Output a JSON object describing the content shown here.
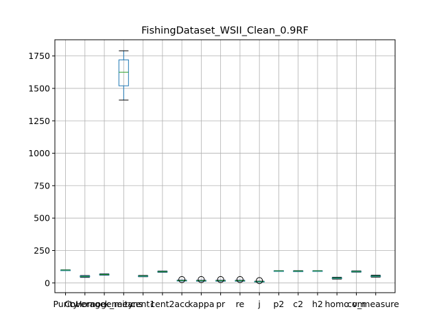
{
  "chart_data": {
    "type": "box",
    "title": "FishingDataset_WSII_Clean_0.9RF",
    "xlabel": "",
    "ylabel": "",
    "ylim": [
      -75,
      1875
    ],
    "yticks": [
      0,
      250,
      500,
      750,
      1000,
      1250,
      1500,
      1750
    ],
    "grid": true,
    "colors": {
      "box": "#1f77b4",
      "median": "#2ca02c",
      "whisker": "#000000",
      "flier": "#000000"
    },
    "categories": [
      "Purity",
      "Coverage",
      "Homogeneity",
      "k_means",
      "cent1",
      "cent2",
      "acc",
      "kappa",
      "pr",
      "re",
      "j",
      "p2",
      "c2",
      "h2",
      "homo",
      "com",
      "v_measure"
    ],
    "boxes": [
      {
        "name": "Purity",
        "whislo": 97,
        "q1": 98,
        "med": 99,
        "q3": 100,
        "whishi": 101,
        "fliers": []
      },
      {
        "name": "Coverage",
        "whislo": 43,
        "q1": 47,
        "med": 50,
        "q3": 54,
        "whishi": 57,
        "fliers": []
      },
      {
        "name": "Homogeneity",
        "whislo": 60,
        "q1": 63,
        "med": 65,
        "q3": 67,
        "whishi": 70,
        "fliers": []
      },
      {
        "name": "k_means",
        "whislo": 1410,
        "q1": 1520,
        "med": 1625,
        "q3": 1720,
        "whishi": 1790,
        "fliers": []
      },
      {
        "name": "cent1",
        "whislo": 48,
        "q1": 51,
        "med": 53,
        "q3": 55,
        "whishi": 58,
        "fliers": []
      },
      {
        "name": "cent2",
        "whislo": 82,
        "q1": 85,
        "med": 87,
        "q3": 89,
        "whishi": 92,
        "fliers": []
      },
      {
        "name": "acc",
        "whislo": 15,
        "q1": 17,
        "med": 18,
        "q3": 20,
        "whishi": 22,
        "fliers": [
          26
        ]
      },
      {
        "name": "kappa",
        "whislo": 14,
        "q1": 16,
        "med": 17,
        "q3": 19,
        "whishi": 21,
        "fliers": [
          26
        ]
      },
      {
        "name": "pr",
        "whislo": 14,
        "q1": 16,
        "med": 17,
        "q3": 19,
        "whishi": 21,
        "fliers": [
          26
        ]
      },
      {
        "name": "re",
        "whislo": 14,
        "q1": 16,
        "med": 17,
        "q3": 19,
        "whishi": 21,
        "fliers": [
          26
        ]
      },
      {
        "name": "j",
        "whislo": 7,
        "q1": 9,
        "med": 10,
        "q3": 12,
        "whishi": 14,
        "fliers": [
          18
        ]
      },
      {
        "name": "p2",
        "whislo": 90,
        "q1": 92,
        "med": 93,
        "q3": 94,
        "whishi": 95,
        "fliers": []
      },
      {
        "name": "c2",
        "whislo": 88,
        "q1": 90,
        "med": 92,
        "q3": 93,
        "whishi": 95,
        "fliers": []
      },
      {
        "name": "h2",
        "whislo": 91,
        "q1": 92,
        "med": 93,
        "q3": 94,
        "whishi": 95,
        "fliers": []
      },
      {
        "name": "homo",
        "whislo": 30,
        "q1": 34,
        "med": 37,
        "q3": 40,
        "whishi": 44,
        "fliers": []
      },
      {
        "name": "com",
        "whislo": 83,
        "q1": 86,
        "med": 88,
        "q3": 90,
        "whishi": 93,
        "fliers": []
      },
      {
        "name": "v_measure",
        "whislo": 45,
        "q1": 49,
        "med": 52,
        "q3": 55,
        "whishi": 60,
        "fliers": []
      }
    ]
  }
}
